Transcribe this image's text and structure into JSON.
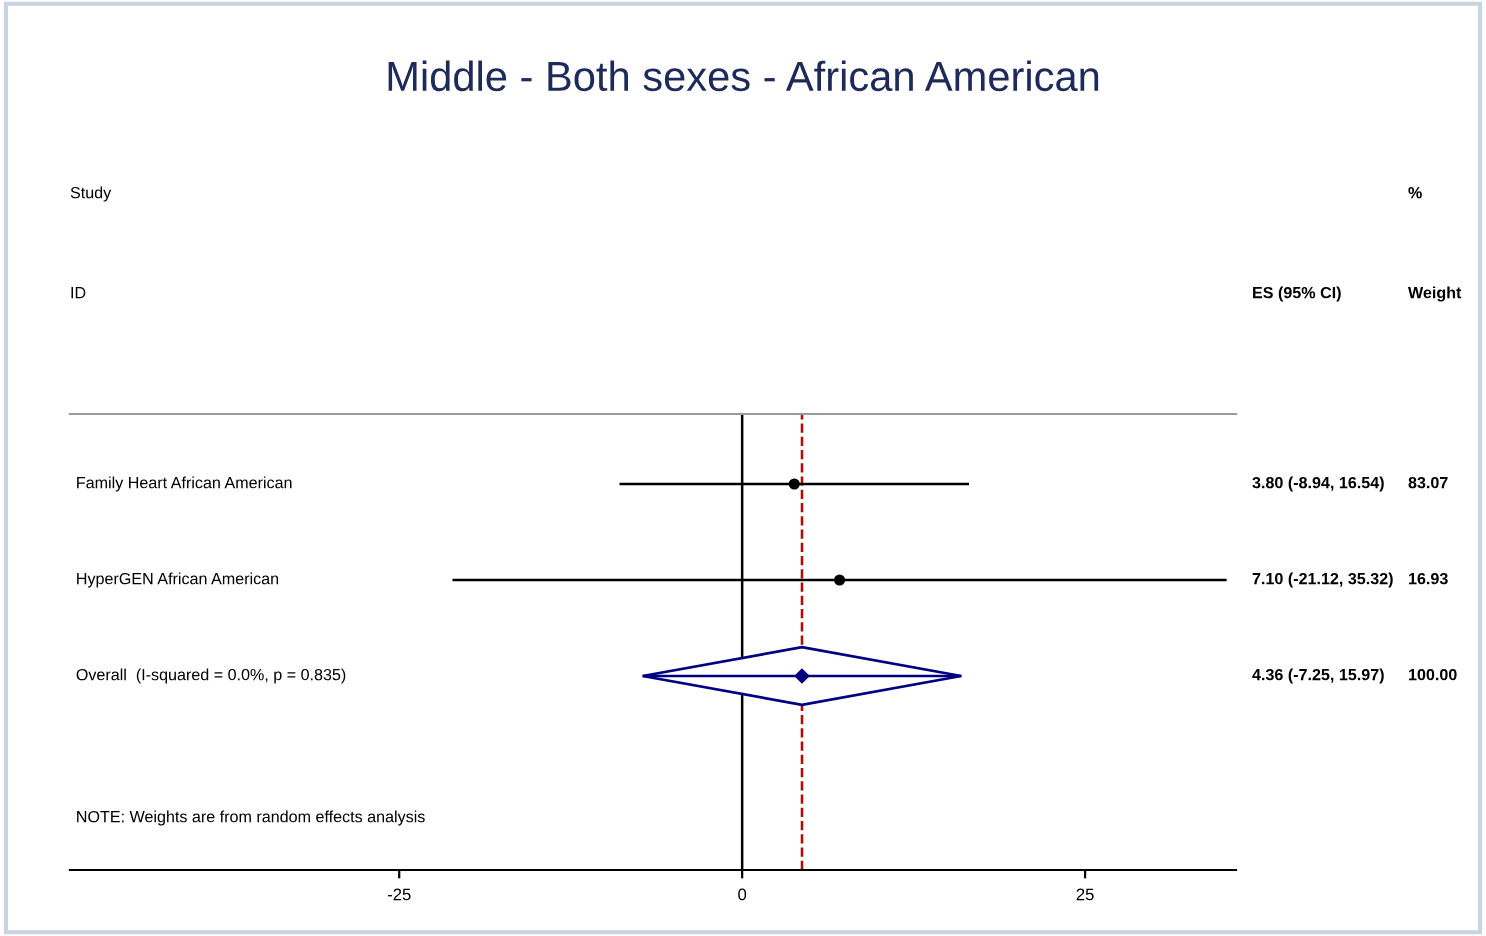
{
  "chart_data": {
    "type": "scatter",
    "orientation": "horizontal",
    "title": "Middle - Both sexes - African American",
    "categories": [
      "Family Heart African American",
      "HyperGEN African American",
      "Overall  (I-squared = 0.0%, p = 0.835)"
    ],
    "series": [
      {
        "marker": "circle",
        "color": "#000000",
        "values": [
          3.8,
          7.1,
          null
        ],
        "errors": [
          [
            -8.94,
            16.54
          ],
          [
            -21.12,
            35.32
          ],
          null
        ]
      },
      {
        "marker": "diamond",
        "color": "#000080",
        "values": [
          null,
          null,
          4.36
        ],
        "errors": [
          null,
          null,
          [
            -7.25,
            15.97
          ]
        ]
      }
    ],
    "xlim": [
      -49,
      36
    ],
    "xticks": [
      -25,
      0,
      25
    ],
    "grid": false,
    "ref_lines": [
      {
        "axis": "x",
        "value": 0,
        "color": "#000000",
        "line_style": "solid"
      },
      {
        "axis": "x",
        "value": 4.36,
        "color": "#c00000",
        "line_style": "dashed"
      }
    ],
    "annotations": [
      "Study",
      "ID",
      "ES (95% CI)",
      "%",
      "Weight",
      "NOTE: Weights are from random effects analysis",
      "3.80 (-8.94, 16.54)",
      "7.10 (-21.12, 35.32)",
      "4.36 (-7.25, 15.97)",
      "83.07",
      "16.93",
      "100.00"
    ]
  }
}
